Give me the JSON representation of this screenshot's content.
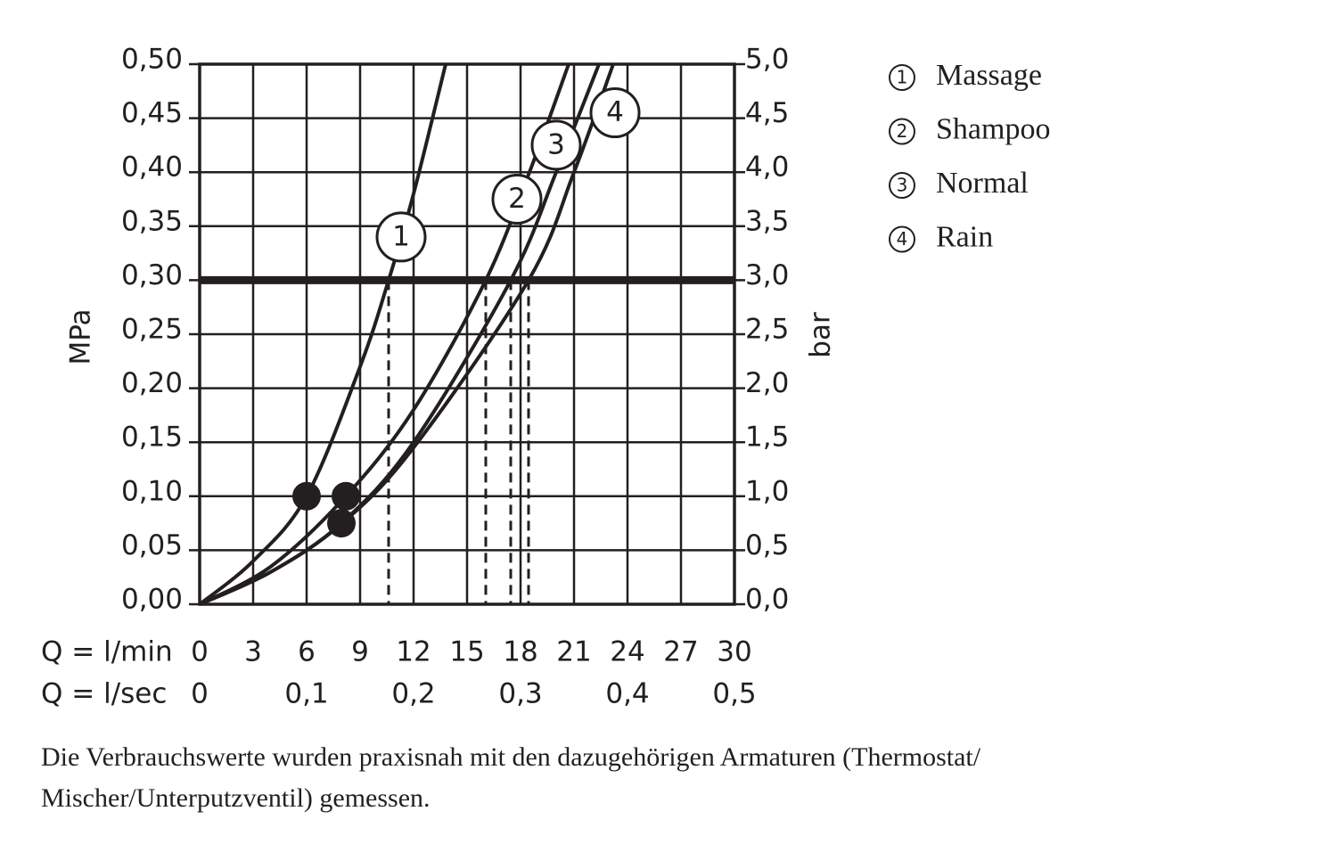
{
  "chart_data": {
    "type": "line",
    "y_label": "MPa",
    "y2_label": "bar",
    "x_label": "Q = l/min",
    "x2_label": "Q = l/sec",
    "xlim": [
      0,
      30
    ],
    "xticks": [
      0,
      3,
      6,
      9,
      12,
      15,
      18,
      21,
      24,
      27,
      30
    ],
    "x2lim": [
      0,
      0.5
    ],
    "x2ticks": [
      0,
      {
        "value": 0.1,
        "label": "0,1"
      },
      {
        "value": 0.2,
        "label": "0,2"
      },
      {
        "value": 0.3,
        "label": "0,3"
      },
      {
        "value": 0.4,
        "label": "0,4"
      },
      {
        "value": 0.5,
        "label": "0,5"
      }
    ],
    "ylim": [
      0,
      0.5
    ],
    "yticks": [
      {
        "value": 0,
        "label": "0,00"
      },
      {
        "value": 0.05,
        "label": "0,05"
      },
      {
        "value": 0.1,
        "label": "0,10"
      },
      {
        "value": 0.15,
        "label": "0,15"
      },
      {
        "value": 0.2,
        "label": "0,20"
      },
      {
        "value": 0.25,
        "label": "0,25"
      },
      {
        "value": 0.3,
        "label": "0,30"
      },
      {
        "value": 0.35,
        "label": "0,35"
      },
      {
        "value": 0.4,
        "label": "0,40"
      },
      {
        "value": 0.45,
        "label": "0,45"
      },
      {
        "value": 0.5,
        "label": "0,50"
      }
    ],
    "y2lim": [
      0,
      5
    ],
    "y2ticks": [
      {
        "value": 0,
        "label": "0,0"
      },
      {
        "value": 0.5,
        "label": "0,5"
      },
      {
        "value": 1,
        "label": "1,0"
      },
      {
        "value": 1.5,
        "label": "1,5"
      },
      {
        "value": 2,
        "label": "2,0"
      },
      {
        "value": 2.5,
        "label": "2,5"
      },
      {
        "value": 3,
        "label": "3,0"
      },
      {
        "value": 3.5,
        "label": "3,5"
      },
      {
        "value": 4,
        "label": "4,0"
      },
      {
        "value": 4.5,
        "label": "4,5"
      },
      {
        "value": 5,
        "label": "5,0"
      }
    ],
    "grid": true,
    "reference_line": 0.3,
    "color": "#231f20",
    "series": [
      {
        "name": "Massage",
        "label": "1",
        "x": [
          0,
          3,
          6,
          9,
          10.6,
          12,
          13.8
        ],
        "values": [
          0,
          0.04,
          0.1,
          0.22,
          0.3,
          0.38,
          0.5
        ],
        "point": {
          "x": 6,
          "y": 0.1
        }
      },
      {
        "name": "Shampoo",
        "label": "2",
        "x": [
          0,
          4,
          8.2,
          12,
          16.05,
          18.5,
          20.7
        ],
        "values": [
          0,
          0.035,
          0.1,
          0.18,
          0.3,
          0.4,
          0.5
        ],
        "point": {
          "x": 8.2,
          "y": 0.1
        }
      },
      {
        "name": "Normal",
        "label": "3",
        "x": [
          0,
          4,
          7.95,
          12,
          17.45,
          20,
          22.4
        ],
        "values": [
          0,
          0.03,
          0.075,
          0.15,
          0.3,
          0.4,
          0.5
        ],
        "point": {
          "x": 7.95,
          "y": 0.075
        }
      },
      {
        "name": "Rain",
        "label": "4",
        "x": [
          0,
          4,
          8,
          12,
          18.45,
          21,
          23.2
        ],
        "values": [
          0,
          0.03,
          0.075,
          0.145,
          0.3,
          0.4,
          0.5
        ]
      }
    ],
    "footnote": [
      "Die Verbrauchswerte wurden praxisnah mit den dazugehörigen Armaturen (Thermostat/",
      "Mischer/Unterputzventil) gemessen."
    ]
  }
}
